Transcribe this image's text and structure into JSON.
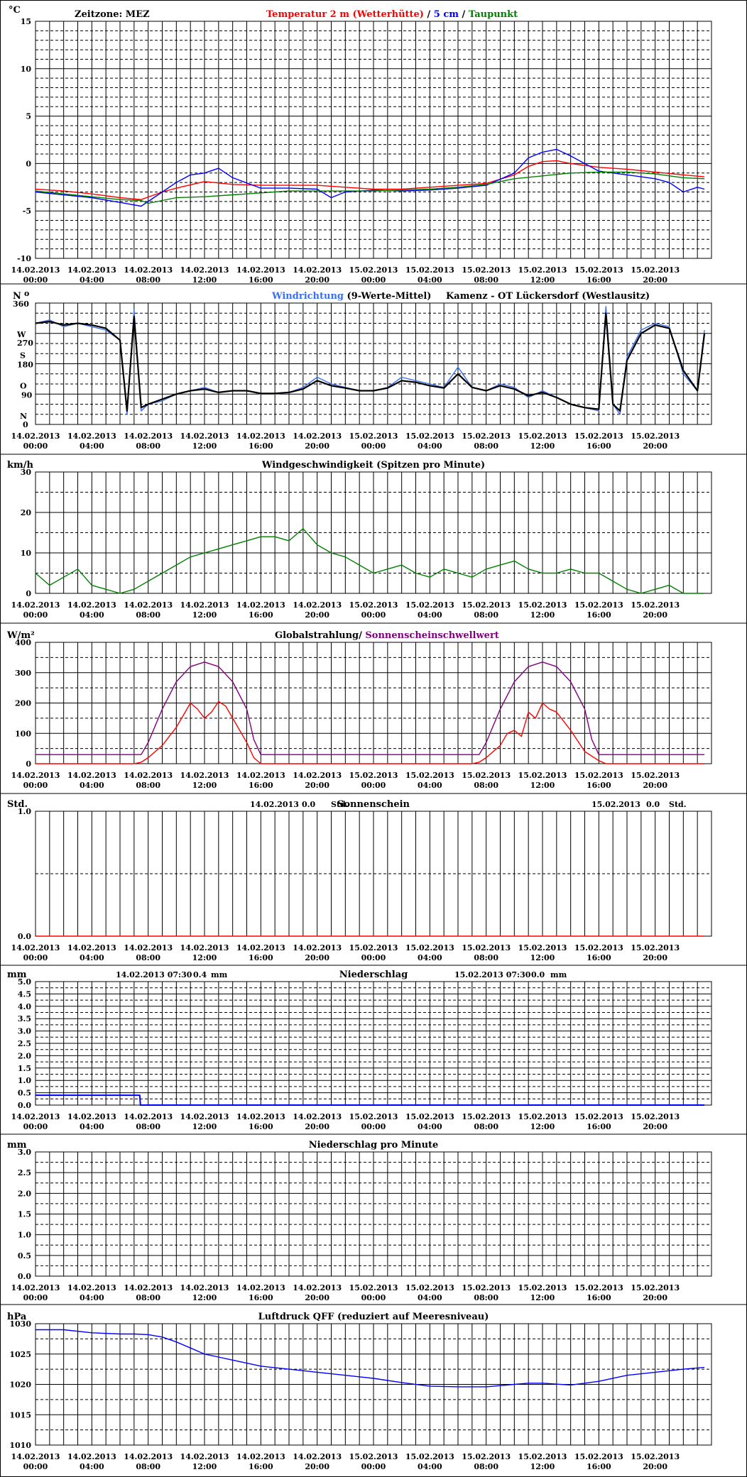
{
  "x_ticks": [
    "14.02.2013|00:00",
    "14.02.2013|04:00",
    "14.02.2013|08:00",
    "14.02.2013|12:00",
    "14.02.2013|16:00",
    "14.02.2013|20:00",
    "15.02.2013|00:00",
    "15.02.2013|04:00",
    "15.02.2013|08:00",
    "15.02.2013|12:00",
    "15.02.2013|16:00",
    "15.02.2013|20:00"
  ],
  "colors": {
    "red": "#ff0000",
    "blue": "#0000ff",
    "green": "#008000",
    "purple": "#800080",
    "black": "#000000",
    "lightblue": "#3a6ff2",
    "navy": "#000080"
  },
  "chart_data": [
    {
      "type": "line",
      "zone_label": "Zeitzone: MEZ",
      "title_parts": [
        "Temperatur 2 m (Wetterhütte)",
        " / ",
        "5 cm",
        " / ",
        "Taupunkt"
      ],
      "unit": "°C",
      "ylim": [
        -10,
        15
      ],
      "y_ticks": [
        -10,
        -5,
        0,
        5,
        10,
        15
      ],
      "x_unit": "hours since 14.02.2013 00:00",
      "series": [
        {
          "name": "Temperatur 2 m (Wetterhütte)",
          "color": "#ff0000",
          "x": [
            0,
            2,
            4,
            6,
            7.5,
            9,
            10,
            12,
            14,
            16,
            18,
            20,
            22,
            24,
            26,
            28,
            30,
            32,
            34,
            35,
            36,
            37,
            38,
            40,
            42,
            44,
            46,
            47.5
          ],
          "y": [
            -2.7,
            -2.9,
            -3.2,
            -3.6,
            -3.8,
            -3.0,
            -2.6,
            -1.9,
            -2.2,
            -2.3,
            -2.3,
            -2.3,
            -2.5,
            -2.7,
            -2.7,
            -2.5,
            -2.3,
            -2.1,
            -1.2,
            -0.3,
            0.2,
            0.3,
            0.0,
            -0.4,
            -0.6,
            -0.9,
            -1.2,
            -1.4
          ]
        },
        {
          "name": "5 cm",
          "color": "#0000ff",
          "x": [
            0,
            2,
            4,
            6,
            7.5,
            9,
            10,
            11,
            12,
            13,
            14,
            16,
            18,
            20,
            21,
            22,
            24,
            26,
            28,
            30,
            32,
            34,
            35,
            36,
            37,
            38,
            40,
            42,
            44,
            45,
            46,
            47,
            47.5
          ],
          "y": [
            -3.0,
            -3.3,
            -3.6,
            -4.1,
            -4.5,
            -3.0,
            -2.0,
            -1.2,
            -1.0,
            -0.5,
            -1.5,
            -2.6,
            -2.6,
            -2.7,
            -3.6,
            -3.0,
            -2.8,
            -2.9,
            -2.8,
            -2.6,
            -2.3,
            -1.0,
            0.6,
            1.2,
            1.5,
            0.8,
            -0.8,
            -1.2,
            -1.6,
            -2.0,
            -3.0,
            -2.5,
            -2.7
          ]
        },
        {
          "name": "Taupunkt",
          "color": "#008000",
          "x": [
            0,
            2,
            4,
            6,
            7.5,
            8,
            10,
            12,
            14,
            16,
            18,
            20,
            22,
            24,
            26,
            28,
            30,
            32,
            34,
            36,
            38,
            40,
            42,
            44,
            46,
            47.5
          ],
          "y": [
            -2.9,
            -3.2,
            -3.5,
            -3.8,
            -3.9,
            -4.2,
            -3.6,
            -3.5,
            -3.3,
            -3.1,
            -2.9,
            -2.9,
            -2.9,
            -2.9,
            -2.8,
            -2.7,
            -2.5,
            -2.2,
            -1.6,
            -1.3,
            -1.0,
            -0.9,
            -0.9,
            -1.1,
            -1.5,
            -1.6
          ]
        }
      ]
    },
    {
      "type": "line",
      "title_parts": [
        "Windrichtung",
        " (9-Werte-Mittel)"
      ],
      "station": "Kamenz - OT Lückersdorf (Westlausitz)",
      "unit": "N",
      "unit_mark": "o",
      "ylim": [
        0,
        360
      ],
      "y_ticks": [
        0,
        90,
        180,
        270,
        360
      ],
      "y_labels": {
        "360": "360",
        "W": "W",
        "S": "S",
        "O": "O",
        "N": "N",
        "0": "0"
      },
      "series": [
        {
          "name": "Windrichtung",
          "color": "#3a6ff2",
          "x": [
            0,
            1,
            2,
            3,
            4,
            5,
            6,
            6.5,
            7,
            7.5,
            8,
            9,
            10,
            11,
            12,
            13,
            14,
            15,
            16,
            17,
            18,
            19,
            20,
            21,
            22,
            23,
            24,
            25,
            26,
            27,
            28,
            29,
            30,
            31,
            32,
            33,
            34,
            35,
            36,
            37,
            38,
            39,
            40,
            40.5,
            41,
            41.5,
            42,
            43,
            44,
            45,
            46,
            47,
            47.5
          ],
          "y": [
            300,
            310,
            290,
            300,
            290,
            280,
            250,
            30,
            340,
            40,
            60,
            70,
            90,
            100,
            110,
            95,
            100,
            100,
            90,
            90,
            95,
            110,
            140,
            120,
            110,
            100,
            100,
            110,
            140,
            130,
            120,
            110,
            170,
            110,
            100,
            120,
            110,
            80,
            100,
            80,
            60,
            50,
            40,
            350,
            60,
            30,
            200,
            280,
            300,
            290,
            150,
            100,
            280
          ]
        },
        {
          "name": "9-Werte-Mittel",
          "color": "#000000",
          "x": [
            0,
            1,
            2,
            3,
            4,
            5,
            6,
            6.5,
            7,
            7.5,
            8,
            9,
            10,
            11,
            12,
            13,
            14,
            15,
            16,
            17,
            18,
            19,
            20,
            21,
            22,
            23,
            24,
            25,
            26,
            27,
            28,
            29,
            30,
            31,
            32,
            33,
            34,
            35,
            36,
            37,
            38,
            39,
            40,
            40.5,
            41,
            41.5,
            42,
            43,
            44,
            45,
            46,
            47,
            47.5
          ],
          "y": [
            300,
            305,
            295,
            300,
            295,
            285,
            250,
            40,
            320,
            50,
            60,
            75,
            90,
            100,
            105,
            95,
            100,
            100,
            92,
            92,
            95,
            105,
            130,
            115,
            108,
            100,
            100,
            108,
            130,
            125,
            115,
            108,
            150,
            110,
            100,
            115,
            105,
            85,
            95,
            80,
            60,
            50,
            45,
            330,
            60,
            40,
            190,
            270,
            295,
            285,
            160,
            100,
            270
          ]
        }
      ]
    },
    {
      "type": "line",
      "title": "Windgeschwindigkeit (Spitzen pro Minute)",
      "unit": "km/h",
      "ylim": [
        0,
        30
      ],
      "y_ticks": [
        0,
        10,
        20,
        30
      ],
      "series": [
        {
          "name": "Windgeschwindigkeit",
          "color": "#008000",
          "x": [
            0,
            1,
            2,
            3,
            4,
            5,
            6,
            7,
            8,
            9,
            10,
            11,
            12,
            13,
            14,
            15,
            16,
            17,
            18,
            19,
            20,
            21,
            22,
            23,
            24,
            25,
            26,
            27,
            28,
            29,
            30,
            31,
            32,
            33,
            34,
            35,
            36,
            37,
            38,
            39,
            40,
            41,
            42,
            43,
            44,
            45,
            46,
            47,
            47.5
          ],
          "y": [
            5,
            2,
            4,
            6,
            2,
            1,
            0,
            1,
            3,
            5,
            7,
            9,
            10,
            11,
            12,
            13,
            14,
            14,
            13,
            16,
            12,
            10,
            9,
            7,
            5,
            6,
            7,
            5,
            4,
            6,
            5,
            4,
            6,
            7,
            8,
            6,
            5,
            5,
            6,
            5,
            5,
            3,
            1,
            0,
            1,
            2,
            0,
            0,
            0
          ]
        }
      ]
    },
    {
      "type": "line",
      "title_parts": [
        "Globalstrahlung/ ",
        "Sonnenscheinschwellwert"
      ],
      "unit": "W/m²",
      "ylim": [
        0,
        400
      ],
      "y_ticks": [
        0,
        100,
        200,
        300,
        400
      ],
      "series": [
        {
          "name": "Globalstrahlung",
          "color": "#ff0000",
          "x": [
            0,
            7,
            7.5,
            8,
            9,
            10,
            10.5,
            11,
            11.5,
            12,
            12.5,
            13,
            13.5,
            14,
            15,
            15.5,
            16,
            24,
            31,
            31.5,
            32,
            33,
            33.5,
            34,
            34.5,
            35,
            35.5,
            36,
            36.5,
            37,
            38,
            39,
            40,
            40.5,
            47.5
          ],
          "y": [
            0,
            0,
            5,
            20,
            60,
            120,
            160,
            200,
            180,
            150,
            170,
            205,
            190,
            150,
            70,
            20,
            0,
            0,
            0,
            5,
            20,
            60,
            100,
            110,
            90,
            170,
            150,
            200,
            180,
            170,
            110,
            40,
            10,
            0,
            0
          ]
        },
        {
          "name": "Sonnenscheinschwellwert",
          "color": "#800080",
          "x": [
            0,
            7,
            7.5,
            8,
            9,
            10,
            11,
            12,
            13,
            14,
            15,
            15.5,
            16,
            24,
            31,
            31.5,
            32,
            33,
            34,
            35,
            36,
            37,
            38,
            39,
            39.5,
            40,
            40.5,
            47.5
          ],
          "y": [
            30,
            30,
            30,
            70,
            180,
            270,
            320,
            335,
            320,
            270,
            180,
            80,
            30,
            30,
            30,
            30,
            70,
            180,
            270,
            320,
            335,
            320,
            270,
            180,
            80,
            30,
            30,
            30
          ]
        }
      ]
    },
    {
      "type": "line",
      "title": "Sonnenschein",
      "unit": "Std.",
      "ylim": [
        0,
        1
      ],
      "y_ticks": [
        "0.0",
        "1.0"
      ],
      "summaries": [
        {
          "date": "14.02.2013",
          "value": "0.0",
          "unit": "Std."
        },
        {
          "date": "15.02.2013",
          "value": "0.0",
          "unit": "Std."
        }
      ],
      "series": [
        {
          "name": "Sonnenschein",
          "color": "#ff0000",
          "x": [
            0,
            47.5
          ],
          "y": [
            0,
            0
          ]
        }
      ]
    },
    {
      "type": "line",
      "title": "Niederschlag",
      "unit": "mm",
      "ylim": [
        0,
        5
      ],
      "y_ticks": [
        "0.0",
        "0.5",
        "1.0",
        "1.5",
        "2.0",
        "2.5",
        "3.0",
        "3.5",
        "4.0",
        "4.5",
        "5.0"
      ],
      "summaries": [
        {
          "date": "14.02.2013 07:30",
          "value": "0.4",
          "unit": "mm"
        },
        {
          "date": "15.02.2013 07:30",
          "value": "0.0",
          "unit": "mm"
        }
      ],
      "series": [
        {
          "name": "Niederschlag",
          "color": "#0000ff",
          "x": [
            0,
            7.4,
            7.45,
            47.5
          ],
          "y": [
            0.4,
            0.4,
            0,
            0
          ]
        }
      ]
    },
    {
      "type": "line",
      "title": "Niederschlag pro Minute",
      "unit": "mm",
      "ylim": [
        0,
        3
      ],
      "y_ticks": [
        "0.0",
        "0.5",
        "1.0",
        "1.5",
        "2.0",
        "2.5",
        "3.0"
      ],
      "series": []
    },
    {
      "type": "line",
      "title": "Luftdruck QFF (reduziert auf Meeresniveau)",
      "unit": "hPa",
      "ylim": [
        1010,
        1030
      ],
      "y_ticks": [
        1010,
        1015,
        1020,
        1025,
        1030
      ],
      "series": [
        {
          "name": "Luftdruck QFF",
          "color": "#0000ff",
          "x": [
            0,
            2,
            4,
            6,
            7,
            8,
            9,
            10,
            11,
            12,
            13,
            14,
            16,
            18,
            20,
            22,
            24,
            26,
            28,
            30,
            32,
            34,
            35,
            36,
            38,
            40,
            42,
            44,
            46,
            47.5
          ],
          "y": [
            1029,
            1029,
            1028.5,
            1028.3,
            1028.3,
            1028.2,
            1027.8,
            1027,
            1026,
            1025,
            1024.5,
            1024,
            1023,
            1022.5,
            1022,
            1021.5,
            1021,
            1020.3,
            1019.7,
            1019.6,
            1019.6,
            1020,
            1020.2,
            1020.2,
            1019.9,
            1020.5,
            1021.5,
            1022,
            1022.5,
            1022.8
          ]
        }
      ]
    }
  ]
}
